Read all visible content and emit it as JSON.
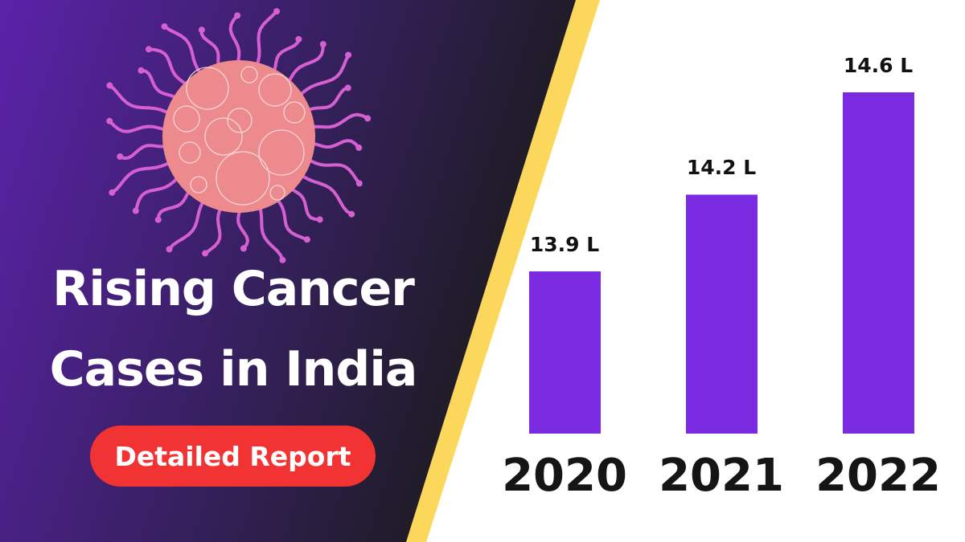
{
  "headline": {
    "line1": "Rising Cancer",
    "line2": "Cases in India"
  },
  "button": {
    "label": "Detailed Report"
  },
  "colors": {
    "bar": "#7a2ae0",
    "button": "#f13333",
    "stripe": "#fbd85c",
    "panel_left": "#5b22aa",
    "panel_right": "#1b1b1d",
    "cell": "#ec8a8e",
    "tentacle": "#d660d2"
  },
  "icon": "cancer-cell-illustration",
  "chart_data": {
    "type": "bar",
    "categories": [
      "2020",
      "2021",
      "2022"
    ],
    "values": [
      13.9,
      14.2,
      14.6
    ],
    "data_labels": [
      "13.9 L",
      "14.2 L",
      "14.6 L"
    ],
    "unit": "L",
    "grid": false
  }
}
